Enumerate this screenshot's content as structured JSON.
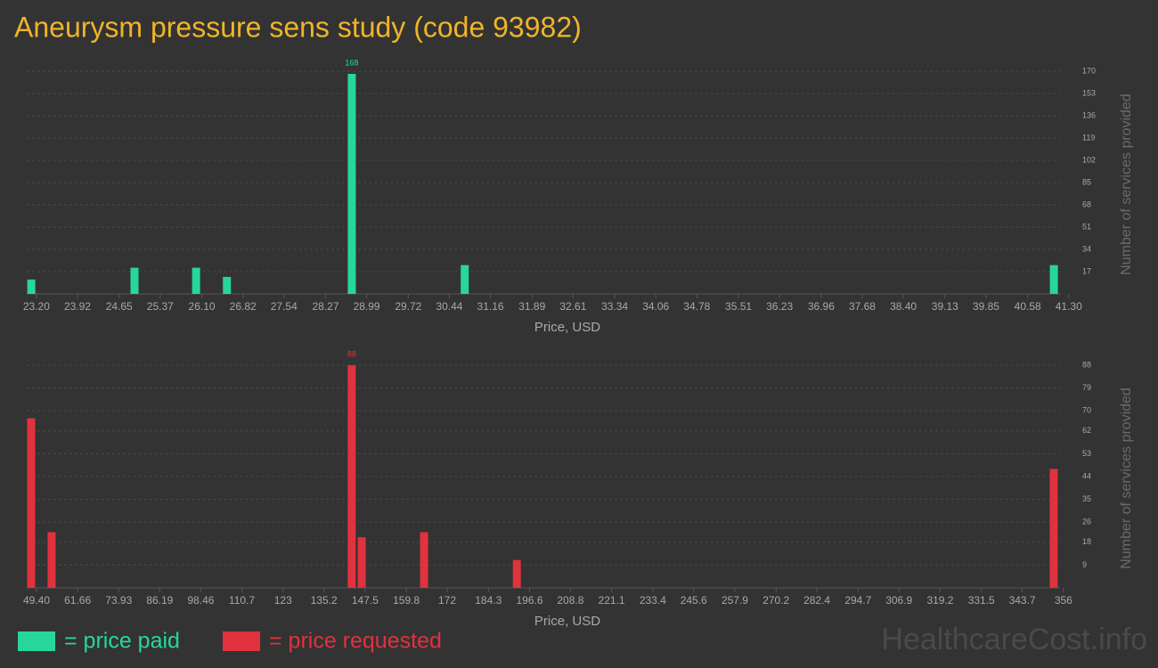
{
  "title": "Aneurysm pressure sens study (code 93982)",
  "watermark": "HealthcareCost.info",
  "chart_data": [
    {
      "type": "bar",
      "xlabel": "Price, USD",
      "ylabel": "Number of services provided",
      "grid": true,
      "x": [
        23.11,
        24.92,
        26.0,
        26.54,
        28.73,
        30.71,
        41.04
      ],
      "series": [
        {
          "name": "= price paid",
          "color": "#27d79a",
          "values": [
            11,
            20,
            20,
            13,
            168,
            22,
            22
          ]
        }
      ],
      "xlim": [
        23.03,
        41.46
      ],
      "ylim": [
        0,
        170
      ],
      "xticks": [
        {
          "value": 23.2,
          "label": "23.20"
        },
        23.92,
        24.65,
        25.37,
        {
          "value": 26.1,
          "label": "26.10"
        },
        26.82,
        27.54,
        28.27,
        28.99,
        29.72,
        30.44,
        31.16,
        31.89,
        32.61,
        33.34,
        34.06,
        34.78,
        35.51,
        36.23,
        36.96,
        37.68,
        {
          "value": 38.4,
          "label": "38.40"
        },
        39.13,
        39.85,
        40.58,
        {
          "value": 41.3,
          "label": "41.30"
        }
      ],
      "yticks": [
        17,
        34,
        51,
        68,
        85,
        102,
        119,
        136,
        153,
        170
      ]
    },
    {
      "type": "bar",
      "xlabel": "Price, USD",
      "ylabel": "Number of services provided",
      "grid": true,
      "x": [
        47.8,
        53.9,
        143.5,
        146.5,
        165.1,
        192.8,
        353.1
      ],
      "series": [
        {
          "name": "= price requested",
          "color": "#e0323f",
          "values": [
            67,
            22,
            88,
            20,
            22,
            11,
            47
          ]
        }
      ],
      "xlim": [
        46.47,
        360.3
      ],
      "ylim": [
        0,
        88
      ],
      "xticks": [
        {
          "value": 49.4,
          "label": "49.40"
        },
        61.66,
        73.93,
        86.19,
        98.46,
        110.7,
        123,
        135.2,
        147.5,
        159.8,
        172,
        184.3,
        196.6,
        208.8,
        221.1,
        233.4,
        245.6,
        257.9,
        270.2,
        282.4,
        294.7,
        306.9,
        319.2,
        331.5,
        343.7,
        356
      ],
      "yticks": [
        9,
        18,
        26,
        35,
        44,
        53,
        62,
        70,
        79,
        88
      ]
    }
  ]
}
